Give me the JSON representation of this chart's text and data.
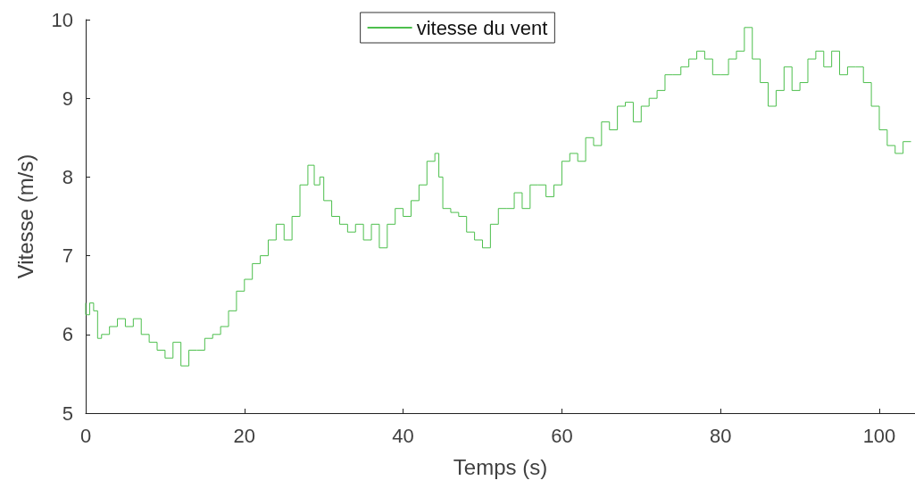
{
  "chart_data": {
    "type": "step",
    "xlabel": "Temps (s)",
    "ylabel": "Vitesse (m/s)",
    "xlim": [
      0,
      104.5
    ],
    "ylim": [
      5,
      10
    ],
    "xticks": [
      0,
      20,
      40,
      60,
      80,
      100
    ],
    "yticks": [
      5,
      6,
      7,
      8,
      9,
      10
    ],
    "grid": false,
    "legend": "top",
    "marker": "none",
    "line_style": "solid",
    "series": [
      {
        "name": "vitesse du vent",
        "color": "#4dbf4d",
        "x": [
          0,
          0.5,
          1,
          1.5,
          2,
          3,
          4,
          5,
          6,
          7,
          8,
          9,
          10,
          11,
          12,
          13,
          14,
          15,
          16,
          17,
          18,
          19,
          20,
          21,
          22,
          23,
          24,
          25,
          26,
          27,
          28,
          28.8,
          29.5,
          30,
          31,
          32,
          33,
          34,
          35,
          36,
          37,
          38,
          39,
          40,
          41,
          42,
          43,
          44,
          44.5,
          45,
          46,
          47,
          48,
          49,
          50,
          51,
          52,
          53,
          54,
          55,
          56,
          57,
          58,
          59,
          60,
          61,
          62,
          63,
          64,
          65,
          66,
          67,
          68,
          69,
          70,
          71,
          72,
          73,
          74,
          75,
          76,
          77,
          78,
          79,
          80,
          81,
          82,
          83,
          84,
          85,
          86,
          87,
          88,
          89,
          90,
          91,
          92,
          93,
          94,
          95,
          96,
          97,
          98,
          99,
          100,
          101,
          102,
          103,
          104
        ],
        "values": [
          6.4,
          6.25,
          6.4,
          6.3,
          5.95,
          6.0,
          6.1,
          6.2,
          6.1,
          6.2,
          6.0,
          5.9,
          5.8,
          5.7,
          5.9,
          5.6,
          5.8,
          5.8,
          5.95,
          6.0,
          6.1,
          6.3,
          6.55,
          6.7,
          6.9,
          7.0,
          7.2,
          7.4,
          7.2,
          7.5,
          7.9,
          8.15,
          7.9,
          8.0,
          7.7,
          7.5,
          7.4,
          7.3,
          7.4,
          7.2,
          7.4,
          7.1,
          7.4,
          7.6,
          7.5,
          7.7,
          7.9,
          8.2,
          8.3,
          8.0,
          7.6,
          7.55,
          7.5,
          7.3,
          7.2,
          7.1,
          7.4,
          7.6,
          7.6,
          7.8,
          7.6,
          7.9,
          7.9,
          7.75,
          7.9,
          8.2,
          8.3,
          8.2,
          8.5,
          8.4,
          8.7,
          8.6,
          8.9,
          8.95,
          8.7,
          8.9,
          9.0,
          9.1,
          9.3,
          9.3,
          9.4,
          9.5,
          9.6,
          9.5,
          9.3,
          9.3,
          9.5,
          9.6,
          9.9,
          9.5,
          9.2,
          8.9,
          9.1,
          9.4,
          9.1,
          9.2,
          9.5,
          9.6,
          9.4,
          9.6,
          9.3,
          9.4,
          9.4,
          9.2,
          8.9,
          8.6,
          8.4,
          8.3,
          8.45
        ]
      }
    ]
  }
}
